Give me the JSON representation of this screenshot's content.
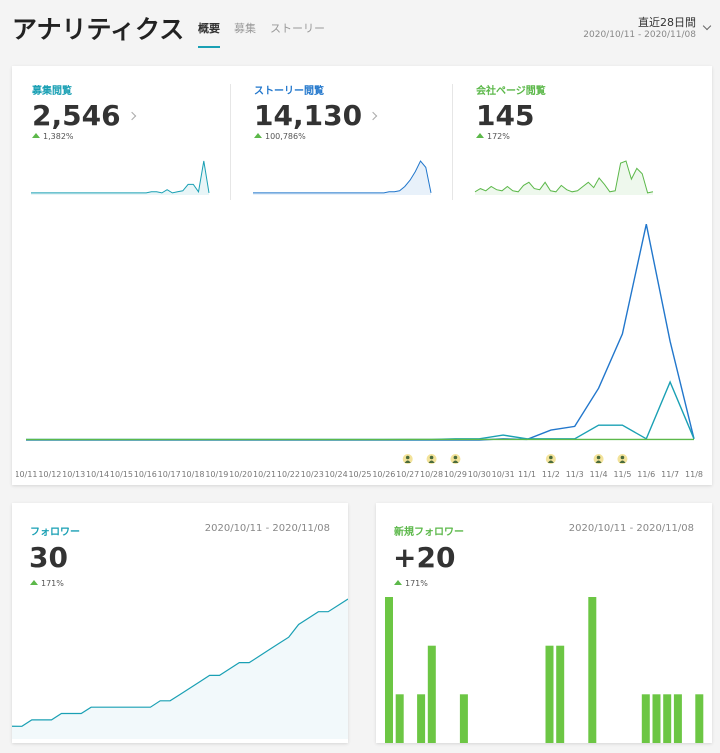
{
  "header": {
    "title": "アナリティクス",
    "tabs": [
      {
        "label": "概要",
        "active": true
      },
      {
        "label": "募集",
        "active": false
      },
      {
        "label": "ストーリー",
        "active": false
      }
    ],
    "date_range": {
      "label": "直近28日間",
      "dates": "2020/10/11 - 2020/11/08"
    }
  },
  "colors": {
    "teal": "#1aa0b4",
    "blue": "#2277cc",
    "green": "#5cb84a",
    "bar_green": "#6cc644"
  },
  "metrics": [
    {
      "label": "募集閲覧",
      "value": "2,546",
      "change": "1,382%",
      "color": "#1aa0b4",
      "spark": [
        2,
        2,
        2,
        2,
        2,
        2,
        2,
        2,
        2,
        2,
        2,
        2,
        2,
        2,
        2,
        2,
        2,
        2,
        2,
        2,
        2,
        2,
        2,
        3,
        3,
        2,
        5,
        2,
        3,
        4,
        10,
        10,
        3,
        32,
        2
      ]
    },
    {
      "label": "ストーリー閲覧",
      "value": "14,130",
      "change": "100,786%",
      "color": "#2277cc",
      "spark": [
        2,
        2,
        2,
        2,
        2,
        2,
        2,
        2,
        2,
        2,
        2,
        2,
        2,
        2,
        2,
        2,
        2,
        2,
        2,
        2,
        2,
        2,
        2,
        2,
        2,
        2,
        3,
        3,
        4,
        8,
        14,
        22,
        32,
        26,
        2
      ]
    },
    {
      "label": "会社ページ閲覧",
      "value": "145",
      "change": "172%",
      "color": "#5cb84a",
      "spark": [
        3,
        6,
        4,
        8,
        5,
        4,
        8,
        4,
        3,
        9,
        12,
        6,
        5,
        12,
        4,
        3,
        9,
        5,
        3,
        4,
        8,
        12,
        7,
        16,
        10,
        3,
        4,
        30,
        32,
        15,
        25,
        20,
        2,
        3
      ]
    }
  ],
  "chart_data": {
    "type": "line",
    "categories": [
      "10/11",
      "10/12",
      "10/13",
      "10/14",
      "10/15",
      "10/16",
      "10/17",
      "10/18",
      "10/19",
      "10/20",
      "10/21",
      "10/22",
      "10/23",
      "10/24",
      "10/25",
      "10/26",
      "10/27",
      "10/28",
      "10/29",
      "10/30",
      "10/31",
      "11/1",
      "11/2",
      "11/3",
      "11/4",
      "11/5",
      "11/6",
      "11/7",
      "11/8"
    ],
    "series": [
      {
        "color": "#2277cc",
        "values": [
          0,
          0,
          0,
          0,
          0,
          0,
          0,
          0,
          0,
          0,
          0,
          0,
          0,
          0,
          0,
          0,
          0,
          0,
          0,
          0,
          10,
          5,
          80,
          110,
          420,
          860,
          1750,
          800,
          10
        ]
      },
      {
        "color": "#1aa0b4",
        "values": [
          5,
          5,
          5,
          5,
          5,
          5,
          5,
          5,
          5,
          5,
          5,
          5,
          5,
          5,
          5,
          5,
          5,
          5,
          10,
          10,
          40,
          10,
          10,
          10,
          120,
          120,
          10,
          470,
          10
        ]
      },
      {
        "color": "#5cb84a",
        "values": [
          3,
          3,
          3,
          3,
          3,
          3,
          3,
          3,
          3,
          3,
          3,
          3,
          3,
          3,
          3,
          3,
          5,
          5,
          5,
          5,
          5,
          5,
          5,
          5,
          5,
          5,
          5,
          5,
          5
        ]
      }
    ],
    "ylim": [
      0,
      1800
    ],
    "markers_at": [
      "10/27",
      "10/28",
      "10/29",
      "11/2",
      "11/4",
      "11/5"
    ]
  },
  "followers": {
    "label": "フォロワー",
    "dates": "2020/10/11 - 2020/11/08",
    "value": "30",
    "change": "171%",
    "chart_data": {
      "type": "line",
      "values": [
        10,
        10,
        11,
        11,
        11,
        12,
        12,
        12,
        13,
        13,
        13,
        13,
        13,
        13,
        13,
        14,
        14,
        15,
        16,
        17,
        18,
        18,
        19,
        20,
        20,
        21,
        22,
        23,
        24,
        26,
        27,
        28,
        28,
        29,
        30
      ],
      "ylim": [
        8,
        30
      ]
    }
  },
  "new_followers": {
    "label": "新規フォロワー",
    "dates": "2020/10/11 - 2020/11/08",
    "value": "+20",
    "change": "171%",
    "chart_data": {
      "type": "bar",
      "values": [
        3,
        1,
        0,
        1,
        2,
        0,
        0,
        1,
        0,
        0,
        0,
        0,
        0,
        0,
        0,
        2,
        2,
        0,
        0,
        3,
        0,
        0,
        0,
        0,
        1,
        1,
        1,
        1,
        0,
        1
      ],
      "ylim": [
        0,
        3
      ]
    }
  }
}
